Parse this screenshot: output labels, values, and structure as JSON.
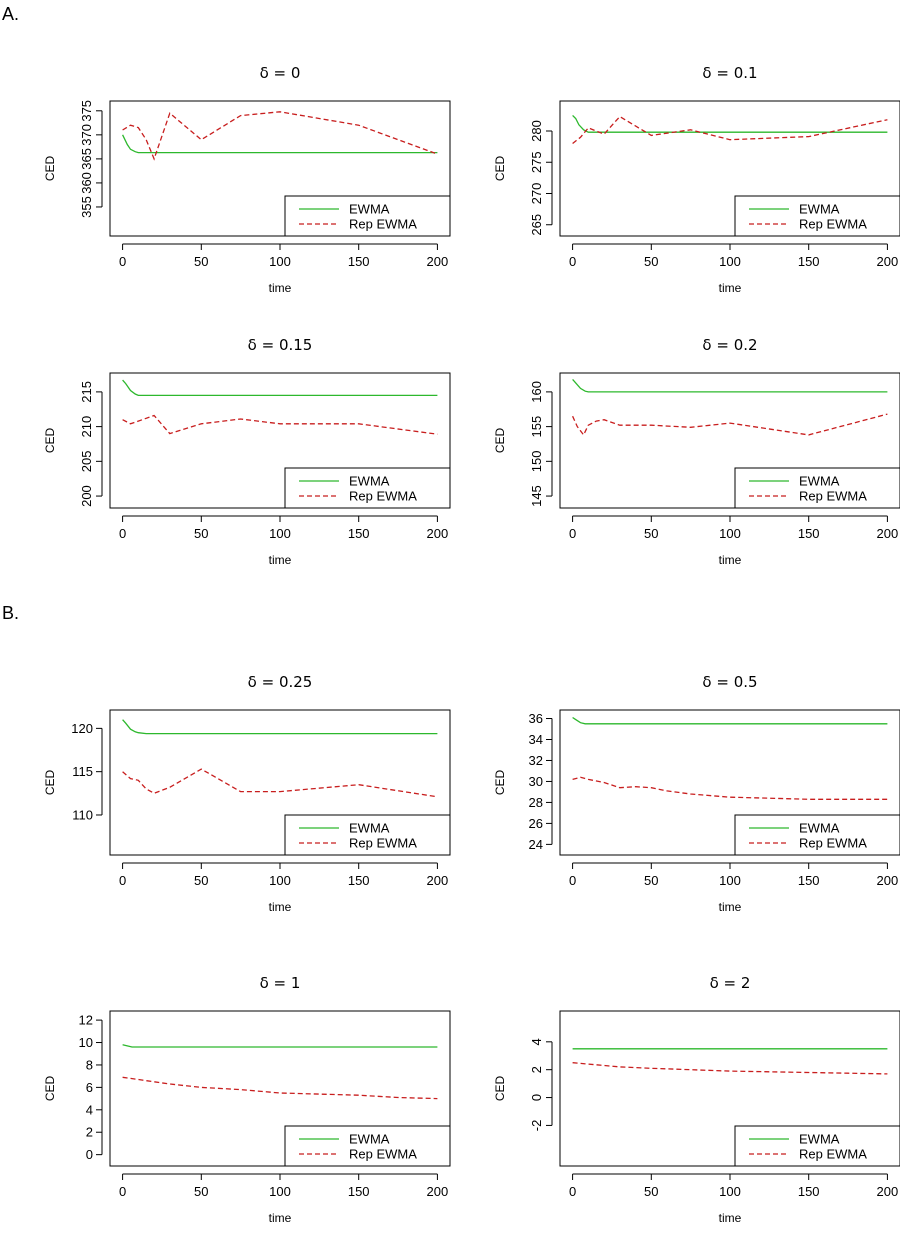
{
  "sections": {
    "a": "A.",
    "b": "B."
  },
  "colors": {
    "ewma": "#2db82d",
    "rep": "#c81e1e"
  },
  "chart_data": [
    {
      "type": "line",
      "title": "δ = 0",
      "xlabel": "time",
      "ylabel": "CED",
      "xlim": [
        0,
        200
      ],
      "xticks": [
        0,
        50,
        100,
        150,
        200
      ],
      "ylim": [
        350,
        376
      ],
      "yticks": [
        355,
        360,
        365,
        370,
        375
      ],
      "ytick_rot": true,
      "legend": [
        "EWMA",
        "Rep EWMA"
      ],
      "legend_position": "bottom-right",
      "series": [
        {
          "name": "EWMA",
          "x": [
            0,
            3,
            5,
            8,
            10,
            15,
            20,
            50,
            100,
            150,
            200
          ],
          "y": [
            370,
            368,
            367,
            366.5,
            366.3,
            366.3,
            366.3,
            366.3,
            366.3,
            366.3,
            366.3
          ]
        },
        {
          "name": "Rep EWMA",
          "x": [
            0,
            5,
            10,
            15,
            20,
            30,
            50,
            75,
            100,
            150,
            200
          ],
          "y": [
            371,
            372,
            371.5,
            369,
            365,
            374.5,
            369,
            374,
            374.8,
            372,
            366
          ]
        }
      ]
    },
    {
      "type": "line",
      "title": "δ = 0.1",
      "xlabel": "time",
      "ylabel": "CED",
      "xlim": [
        0,
        200
      ],
      "xticks": [
        0,
        50,
        100,
        150,
        200
      ],
      "ylim": [
        264,
        284
      ],
      "yticks": [
        265,
        270,
        275,
        280
      ],
      "ytick_rot": true,
      "legend": [
        "EWMA",
        "Rep EWMA"
      ],
      "legend_position": "bottom-right",
      "series": [
        {
          "name": "EWMA",
          "x": [
            0,
            2,
            4,
            7,
            10,
            20,
            50,
            100,
            150,
            200
          ],
          "y": [
            282.5,
            282,
            281,
            280.2,
            279.8,
            279.8,
            279.8,
            279.8,
            279.8,
            279.8
          ]
        },
        {
          "name": "Rep EWMA",
          "x": [
            0,
            5,
            10,
            20,
            30,
            50,
            75,
            100,
            150,
            200
          ],
          "y": [
            278,
            279,
            280.5,
            279.5,
            282.3,
            279.3,
            280.2,
            278.6,
            279.1,
            281.8
          ]
        }
      ]
    },
    {
      "type": "line",
      "title": "δ = 0.15",
      "xlabel": "time",
      "ylabel": "CED",
      "xlim": [
        0,
        200
      ],
      "xticks": [
        0,
        50,
        100,
        150,
        200
      ],
      "ylim": [
        199,
        217
      ],
      "yticks": [
        200,
        205,
        210,
        215
      ],
      "ytick_rot": true,
      "legend": [
        "EWMA",
        "Rep EWMA"
      ],
      "legend_position": "bottom-right",
      "series": [
        {
          "name": "EWMA",
          "x": [
            0,
            2,
            5,
            8,
            10,
            20,
            50,
            100,
            150,
            200
          ],
          "y": [
            216.7,
            216.2,
            215.2,
            214.7,
            214.5,
            214.5,
            214.5,
            214.5,
            214.5,
            214.5
          ]
        },
        {
          "name": "Rep EWMA",
          "x": [
            0,
            5,
            10,
            20,
            30,
            50,
            75,
            100,
            150,
            200
          ],
          "y": [
            211,
            210.4,
            210.8,
            211.6,
            209,
            210.4,
            211.1,
            210.4,
            210.4,
            208.9
          ]
        }
      ]
    },
    {
      "type": "line",
      "title": "δ = 0.2",
      "xlabel": "time",
      "ylabel": "CED",
      "xlim": [
        0,
        200
      ],
      "xticks": [
        0,
        50,
        100,
        150,
        200
      ],
      "ylim": [
        144,
        162
      ],
      "yticks": [
        145,
        150,
        155,
        160
      ],
      "ytick_rot": true,
      "legend": [
        "EWMA",
        "Rep EWMA"
      ],
      "legend_position": "bottom-right",
      "series": [
        {
          "name": "EWMA",
          "x": [
            0,
            2,
            5,
            8,
            10,
            20,
            50,
            100,
            150,
            200
          ],
          "y": [
            161.8,
            161.3,
            160.5,
            160.1,
            160,
            160,
            160,
            160,
            160,
            160
          ]
        },
        {
          "name": "Rep EWMA",
          "x": [
            0,
            3,
            7,
            10,
            15,
            20,
            30,
            50,
            75,
            100,
            150,
            200
          ],
          "y": [
            156.5,
            155,
            153.8,
            155.2,
            155.8,
            156,
            155.2,
            155.2,
            154.9,
            155.5,
            153.8,
            156.8
          ]
        }
      ]
    },
    {
      "type": "line",
      "title": "δ = 0.25",
      "xlabel": "time",
      "ylabel": "CED",
      "xlim": [
        0,
        200
      ],
      "xticks": [
        0,
        50,
        100,
        150,
        200
      ],
      "ylim": [
        106,
        121.5
      ],
      "yticks": [
        110,
        115,
        120
      ],
      "ytick_rot": false,
      "legend": [
        "EWMA",
        "Rep EWMA"
      ],
      "legend_position": "bottom-right",
      "series": [
        {
          "name": "EWMA",
          "x": [
            0,
            2,
            5,
            8,
            10,
            15,
            20,
            50,
            100,
            150,
            200
          ],
          "y": [
            121,
            120.6,
            119.9,
            119.6,
            119.5,
            119.4,
            119.4,
            119.4,
            119.4,
            119.4,
            119.4
          ]
        },
        {
          "name": "Rep EWMA",
          "x": [
            0,
            5,
            10,
            15,
            20,
            30,
            50,
            75,
            100,
            150,
            200
          ],
          "y": [
            115,
            114.2,
            114,
            113,
            112.5,
            113.2,
            115.3,
            112.7,
            112.7,
            113.5,
            112.1
          ]
        }
      ]
    },
    {
      "type": "line",
      "title": "δ = 0.5",
      "xlabel": "time",
      "ylabel": "CED",
      "xlim": [
        0,
        200
      ],
      "xticks": [
        0,
        50,
        100,
        150,
        200
      ],
      "ylim": [
        23.5,
        36.3
      ],
      "yticks": [
        24,
        26,
        28,
        30,
        32,
        34,
        36
      ],
      "ytick_rot": false,
      "legend": [
        "EWMA",
        "Rep EWMA"
      ],
      "legend_position": "bottom-right",
      "series": [
        {
          "name": "EWMA",
          "x": [
            0,
            2,
            5,
            8,
            10,
            20,
            50,
            100,
            150,
            200
          ],
          "y": [
            36.1,
            35.9,
            35.6,
            35.5,
            35.5,
            35.5,
            35.5,
            35.5,
            35.5,
            35.5
          ]
        },
        {
          "name": "Rep EWMA",
          "x": [
            0,
            5,
            10,
            20,
            30,
            40,
            50,
            60,
            75,
            100,
            125,
            150,
            175,
            200
          ],
          "y": [
            30.2,
            30.4,
            30.2,
            29.9,
            29.4,
            29.5,
            29.4,
            29.1,
            28.8,
            28.5,
            28.4,
            28.3,
            28.3,
            28.3
          ]
        }
      ]
    },
    {
      "type": "line",
      "title": "δ = 1",
      "xlabel": "time",
      "ylabel": "CED",
      "xlim": [
        0,
        200
      ],
      "xticks": [
        0,
        50,
        100,
        150,
        200
      ],
      "ylim": [
        -0.5,
        12.3
      ],
      "yticks": [
        0,
        2,
        4,
        6,
        8,
        10,
        12
      ],
      "ytick_rot": false,
      "legend": [
        "EWMA",
        "Rep EWMA"
      ],
      "legend_position": "bottom-right",
      "series": [
        {
          "name": "EWMA",
          "x": [
            0,
            3,
            6,
            10,
            20,
            50,
            100,
            150,
            200
          ],
          "y": [
            9.8,
            9.7,
            9.6,
            9.6,
            9.6,
            9.6,
            9.6,
            9.6,
            9.6
          ]
        },
        {
          "name": "Rep EWMA",
          "x": [
            0,
            10,
            20,
            30,
            50,
            75,
            100,
            125,
            150,
            175,
            200
          ],
          "y": [
            6.9,
            6.7,
            6.5,
            6.3,
            6.0,
            5.8,
            5.5,
            5.4,
            5.3,
            5.1,
            5.0
          ]
        }
      ]
    },
    {
      "type": "line",
      "title": "δ = 2",
      "xlabel": "time",
      "ylabel": "CED",
      "xlim": [
        0,
        200
      ],
      "xticks": [
        0,
        50,
        100,
        150,
        200
      ],
      "ylim": [
        -4.5,
        5.8
      ],
      "yticks": [
        -2,
        0,
        2,
        4
      ],
      "ytick_rot": true,
      "legend": [
        "EWMA",
        "Rep EWMA"
      ],
      "legend_position": "bottom-right",
      "series": [
        {
          "name": "EWMA",
          "x": [
            0,
            50,
            100,
            150,
            200
          ],
          "y": [
            3.5,
            3.5,
            3.5,
            3.5,
            3.5
          ]
        },
        {
          "name": "Rep EWMA",
          "x": [
            0,
            10,
            20,
            30,
            50,
            75,
            100,
            125,
            150,
            175,
            200
          ],
          "y": [
            2.5,
            2.4,
            2.3,
            2.2,
            2.1,
            2.0,
            1.9,
            1.85,
            1.8,
            1.75,
            1.7
          ]
        }
      ]
    }
  ]
}
